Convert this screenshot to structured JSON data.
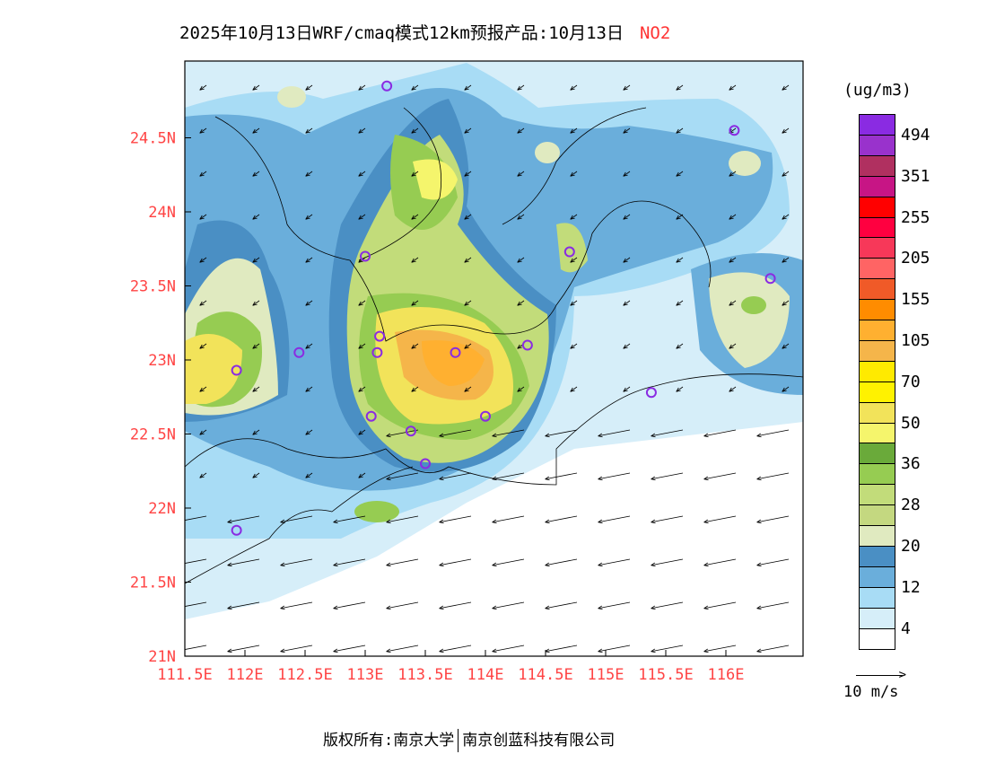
{
  "title": {
    "main": "2025年10月13日WRF/cmaq模式12km预报产品:10月13日",
    "species": "NO2"
  },
  "legend": {
    "unit": "(ug/m3)",
    "colors": [
      "#8a2be2",
      "#9932cc",
      "#b03060",
      "#c71585",
      "#ff0000",
      "#ff0040",
      "#f73859",
      "#ff6464",
      "#f05a28",
      "#ff8c00",
      "#ffb030",
      "#f5b54a",
      "#ffea00",
      "#fff200",
      "#f2e35a",
      "#f5f56c",
      "#6aaa3a",
      "#96cc52",
      "#c2dc7a",
      "#c4d880",
      "#e0eac0",
      "#4a8fc4",
      "#6aaedb",
      "#a8dcf5",
      "#d6eef9",
      "#ffffff"
    ],
    "labels": [
      "494",
      "351",
      "255",
      "205",
      "155",
      "105",
      "70",
      "50",
      "36",
      "28",
      "20",
      "12",
      "4"
    ],
    "wind_ref": "10 m/s"
  },
  "footer": {
    "left": "版权所有:南京大学",
    "right": "南京创蓝科技有限公司"
  },
  "chart_data": {
    "type": "map",
    "variable": "NO2",
    "lon_range": [
      111.5,
      116.5
    ],
    "lat_range": [
      21,
      25
    ],
    "xticks": [
      "111.5E",
      "112E",
      "112.5E",
      "113E",
      "113.5E",
      "114E",
      "114.5E",
      "115E",
      "115.5E",
      "116E"
    ],
    "yticks": [
      "21N",
      "21.5N",
      "22N",
      "22.5N",
      "23N",
      "23.5N",
      "24N",
      "24.5N"
    ],
    "stations": [
      [
        113.18,
        24.85
      ],
      [
        116.07,
        24.55
      ],
      [
        113.0,
        23.7
      ],
      [
        114.7,
        23.73
      ],
      [
        116.37,
        23.55
      ],
      [
        112.45,
        23.05
      ],
      [
        111.93,
        22.93
      ],
      [
        113.1,
        23.05
      ],
      [
        113.12,
        23.16
      ],
      [
        113.75,
        23.05
      ],
      [
        114.35,
        23.1
      ],
      [
        114.0,
        22.62
      ],
      [
        113.05,
        22.62
      ],
      [
        113.38,
        22.52
      ],
      [
        113.5,
        22.3
      ],
      [
        115.38,
        22.78
      ],
      [
        111.93,
        21.85
      ]
    ]
  }
}
